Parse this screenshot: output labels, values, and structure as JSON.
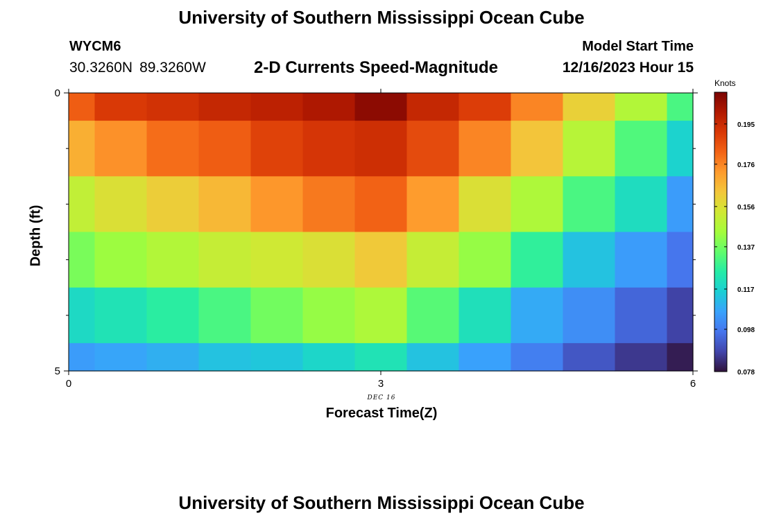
{
  "header": {
    "title": "University of Southern Mississippi Ocean Cube",
    "station": "WYCM6",
    "lat": "30.3260N",
    "lon": "89.3260W",
    "subtitle": "2-D Currents Speed-Magnitude",
    "model_start_label": "Model Start Time",
    "model_start_value": "12/16/2023 Hour 15"
  },
  "footer": {
    "title": "University of Southern Mississippi Ocean Cube"
  },
  "chart_data": {
    "type": "heatmap",
    "xlabel": "Forecast Time(Z)",
    "ylabel": "Depth (ft)",
    "date_label": "DEC 16",
    "x_ticks": [
      0,
      3,
      6
    ],
    "y_ticks": [
      0,
      5
    ],
    "xlim": [
      0,
      6
    ],
    "ylim": [
      0,
      5
    ],
    "x_centers": [
      0,
      0.5,
      1,
      1.5,
      2,
      2.5,
      3,
      3.5,
      4,
      4.5,
      5,
      5.5,
      6
    ],
    "y_centers": [
      0,
      1,
      2,
      3,
      4,
      5
    ],
    "colorbar": {
      "label": "Knots",
      "min": 0.078,
      "max": 0.21,
      "ticks": [
        0.195,
        0.176,
        0.156,
        0.137,
        0.117,
        0.098,
        0.078
      ],
      "stops": [
        "#30123b",
        "#4145ab",
        "#4675ed",
        "#39a2fc",
        "#1bcfd4",
        "#24eca6",
        "#61fc6c",
        "#a4fc3b",
        "#d1e834",
        "#f3c63a",
        "#fe9b2d",
        "#f36315",
        "#d93806",
        "#b11901",
        "#7a0403"
      ]
    },
    "values": [
      [
        0.183,
        0.191,
        0.193,
        0.196,
        0.198,
        0.201,
        0.207,
        0.196,
        0.19,
        0.176,
        0.16,
        0.147,
        0.131
      ],
      [
        0.168,
        0.174,
        0.18,
        0.183,
        0.189,
        0.192,
        0.194,
        0.187,
        0.176,
        0.163,
        0.148,
        0.132,
        0.117
      ],
      [
        0.15,
        0.156,
        0.161,
        0.166,
        0.173,
        0.178,
        0.182,
        0.172,
        0.156,
        0.146,
        0.131,
        0.12,
        0.105
      ],
      [
        0.138,
        0.143,
        0.147,
        0.151,
        0.153,
        0.156,
        0.162,
        0.151,
        0.142,
        0.127,
        0.113,
        0.105,
        0.097
      ],
      [
        0.119,
        0.122,
        0.126,
        0.131,
        0.137,
        0.142,
        0.146,
        0.133,
        0.121,
        0.108,
        0.102,
        0.094,
        0.087
      ],
      [
        0.105,
        0.107,
        0.109,
        0.113,
        0.114,
        0.118,
        0.122,
        0.113,
        0.106,
        0.099,
        0.091,
        0.085,
        0.08
      ]
    ]
  }
}
